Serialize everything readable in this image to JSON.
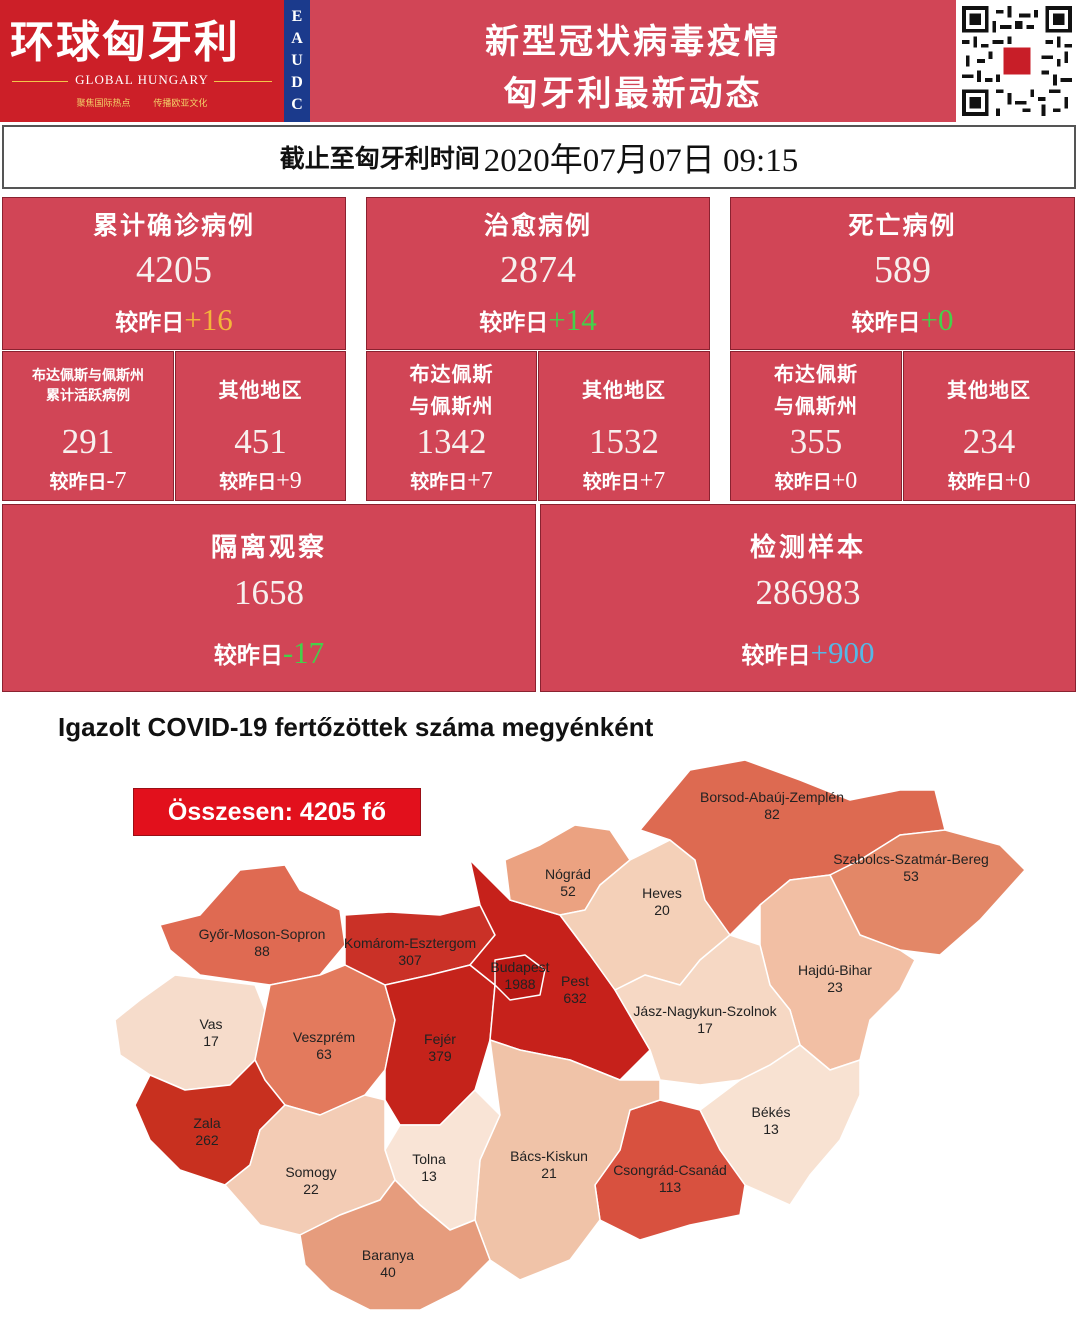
{
  "header": {
    "logo_cn": "环球匈牙利",
    "logo_en": "GLOBAL HUNGARY",
    "logo_tagline": "聚焦国际热点        传播欧亚文化",
    "badge_letters": [
      "E",
      "A",
      "U",
      "D",
      "C"
    ],
    "headline_1": "新型冠状病毒疫情",
    "headline_2": "匈牙利最新动态"
  },
  "date": {
    "label": "截止至匈牙利时间",
    "value": "2020年07月07日  09:15"
  },
  "cards": {
    "diff_label": "较昨日",
    "confirmed": {
      "title": "累计确诊病例",
      "value": "4205",
      "diff": "+16",
      "diff_color": "#f4b53a"
    },
    "recovered": {
      "title": "治愈病例",
      "value": "2874",
      "diff": "+14",
      "diff_color": "#45d04a"
    },
    "deaths": {
      "title": "死亡病例",
      "value": "589",
      "diff": "+0",
      "diff_color": "#45d04a"
    },
    "sub": [
      {
        "title": "布达佩斯与佩斯州\n累计活跃病例",
        "value": "291",
        "diff": "-7"
      },
      {
        "title": "其他地区",
        "value": "451",
        "diff": "+9"
      },
      {
        "title": "布达佩斯\n与佩斯州",
        "value": "1342",
        "diff": "+7"
      },
      {
        "title": "其他地区",
        "value": "1532",
        "diff": "+7"
      },
      {
        "title": "布达佩斯\n与佩斯州",
        "value": "355",
        "diff": "+0"
      },
      {
        "title": "其他地区",
        "value": "234",
        "diff": "+0"
      }
    ],
    "quarantine": {
      "title": "隔离观察",
      "value": "1658",
      "diff": "-17",
      "diff_color": "#45d04a"
    },
    "tests": {
      "title": "检测样本",
      "value": "286983",
      "diff": "+900",
      "diff_color": "#56b8e6"
    }
  },
  "map": {
    "title": "Igazolt COVID-19 fertőzöttek száma megyénként",
    "total": "Összesen: 4205 fő",
    "counties": [
      {
        "name": "Borsod-Abaúj-Zemplén",
        "value": "82"
      },
      {
        "name": "Nógrád",
        "value": "52"
      },
      {
        "name": "Heves",
        "value": "20"
      },
      {
        "name": "Szabolcs-Szatmár-Bereg",
        "value": "53"
      },
      {
        "name": "Győr-Moson-Sopron",
        "value": "88"
      },
      {
        "name": "Komárom-Esztergom",
        "value": "307"
      },
      {
        "name": "Budapest",
        "value": "1988"
      },
      {
        "name": "Pest",
        "value": "632"
      },
      {
        "name": "Hajdú-Bihar",
        "value": "23"
      },
      {
        "name": "Vas",
        "value": "17"
      },
      {
        "name": "Veszprém",
        "value": "63"
      },
      {
        "name": "Fejér",
        "value": "379"
      },
      {
        "name": "Jász-Nagykun-Szolnok",
        "value": "17"
      },
      {
        "name": "Zala",
        "value": "262"
      },
      {
        "name": "Somogy",
        "value": "22"
      },
      {
        "name": "Tolna",
        "value": "13"
      },
      {
        "name": "Bács-Kiskun",
        "value": "21"
      },
      {
        "name": "Békés",
        "value": "13"
      },
      {
        "name": "Csongrád-Csanád",
        "value": "113"
      },
      {
        "name": "Baranya",
        "value": "40"
      }
    ]
  }
}
